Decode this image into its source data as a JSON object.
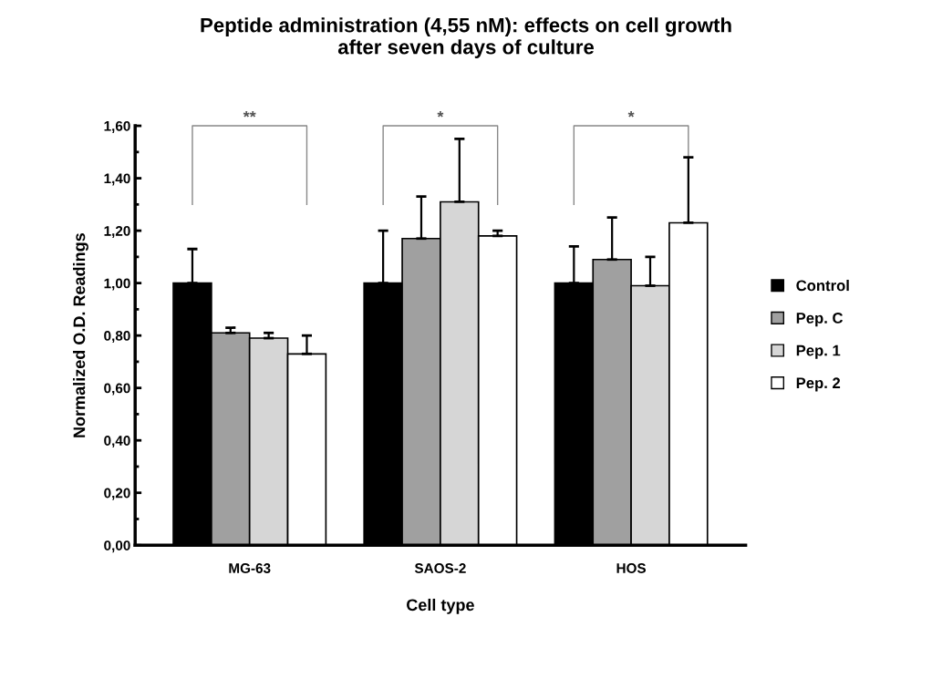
{
  "chart_data": {
    "type": "bar",
    "title": "Peptide administration (4,55 nM): effects on cell growth\nafter seven days of culture",
    "xlabel": "Cell type",
    "ylabel": "Normalized O.D. Readings",
    "categories": [
      "MG-63",
      "SAOS-2",
      "HOS"
    ],
    "series": [
      {
        "name": "Control",
        "color": "#000000",
        "values": [
          1.0,
          1.0,
          1.0
        ],
        "errors": [
          [
            1.0,
            1.13
          ],
          [
            1.0,
            1.2
          ],
          [
            1.0,
            1.14
          ]
        ]
      },
      {
        "name": "Pep. C",
        "color": "#a0a0a0",
        "values": [
          0.81,
          1.17,
          1.09
        ],
        "errors": [
          [
            0.81,
            0.83
          ],
          [
            1.17,
            1.33
          ],
          [
            1.09,
            1.25
          ]
        ]
      },
      {
        "name": "Pep. 1",
        "color": "#d6d6d6",
        "values": [
          0.79,
          1.31,
          0.99
        ],
        "errors": [
          [
            0.79,
            0.81
          ],
          [
            1.31,
            1.55
          ],
          [
            0.99,
            1.1
          ]
        ]
      },
      {
        "name": "Pep. 2",
        "color": "#ffffff",
        "values": [
          0.73,
          1.18,
          1.23
        ],
        "errors": [
          [
            0.73,
            0.8
          ],
          [
            1.18,
            1.2
          ],
          [
            1.23,
            1.48
          ]
        ]
      }
    ],
    "ylim": [
      0,
      1.6
    ],
    "yticks": [
      {
        "value": 0,
        "label": "0,00"
      },
      {
        "value": 0.2,
        "label": "0,20"
      },
      {
        "value": 0.4,
        "label": "0,40"
      },
      {
        "value": 0.6,
        "label": "0,60"
      },
      {
        "value": 0.8,
        "label": "0,80"
      },
      {
        "value": 1.0,
        "label": "1,00"
      },
      {
        "value": 1.2,
        "label": "1,20"
      },
      {
        "value": 1.4,
        "label": "1,40"
      },
      {
        "value": 1.6,
        "label": "1,60"
      }
    ],
    "annotations": [
      "**",
      "*",
      "*"
    ],
    "legend": "right",
    "grid": false
  }
}
